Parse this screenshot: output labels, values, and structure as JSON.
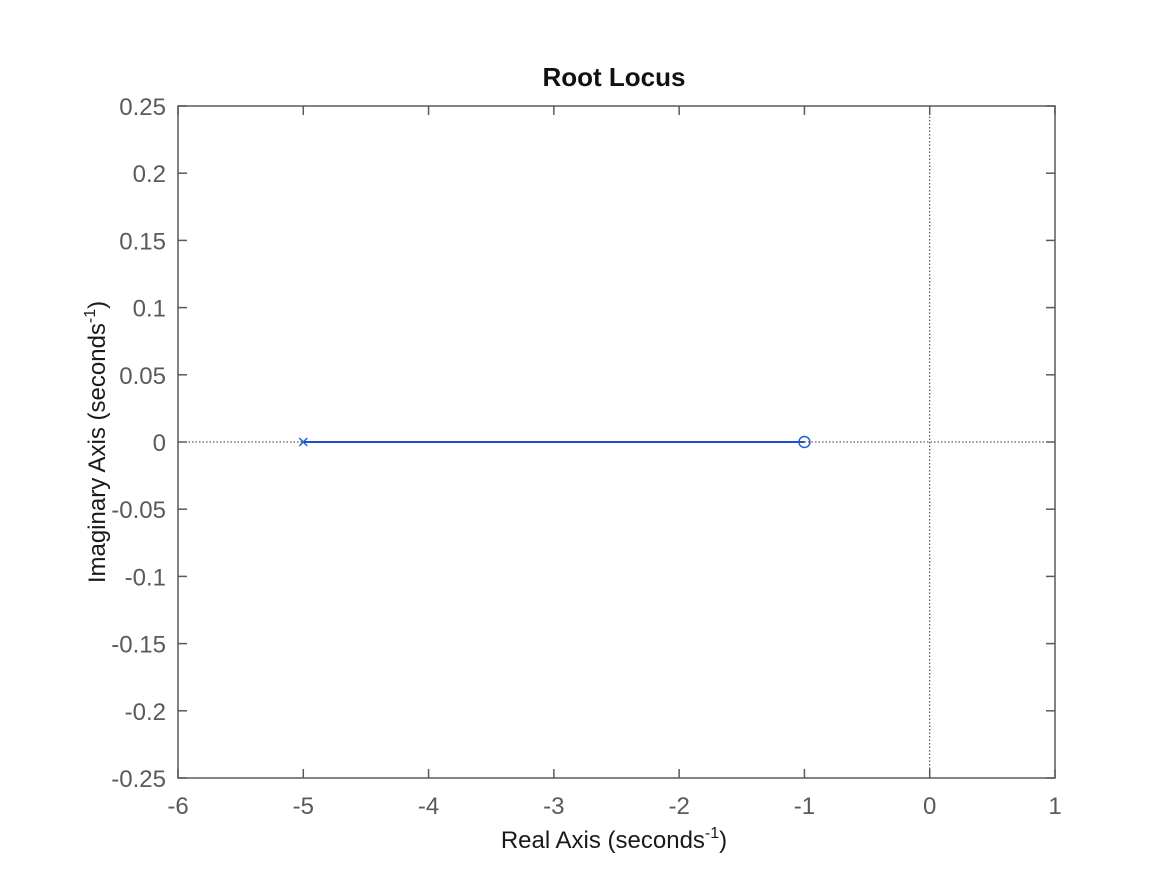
{
  "chart_data": {
    "type": "line",
    "title": "Root Locus",
    "xlabel": {
      "prefix": "Real Axis (seconds",
      "sup": "-1",
      "suffix": ")"
    },
    "ylabel": {
      "prefix": "Imaginary Axis (seconds",
      "sup": "-1",
      "suffix": ")"
    },
    "xlim": [
      -6,
      1
    ],
    "ylim": [
      -0.25,
      0.25
    ],
    "xticks": [
      -6,
      -5,
      -4,
      -3,
      -2,
      -1,
      0,
      1
    ],
    "xtick_labels": [
      "-6",
      "-5",
      "-4",
      "-3",
      "-2",
      "-1",
      "0",
      "1"
    ],
    "yticks": [
      0.25,
      0.2,
      0.15,
      0.1,
      0.05,
      0,
      -0.05,
      -0.1,
      -0.15,
      -0.2,
      -0.25
    ],
    "ytick_labels": [
      "0.25",
      "0.2",
      "0.15",
      "0.1",
      "0.05",
      "0",
      "-0.05",
      "-0.1",
      "-0.15",
      "-0.2",
      "-0.25"
    ],
    "grid": false,
    "reference_lines": {
      "x": 0,
      "y": 0,
      "style": "dotted"
    },
    "series": [
      {
        "name": "locus-branch",
        "x": [
          -5,
          -1
        ],
        "y": [
          0,
          0
        ],
        "color": "#0033cc"
      }
    ],
    "poles": [
      {
        "x": -5,
        "y": 0
      }
    ],
    "zeros": [
      {
        "x": -1,
        "y": 0
      }
    ],
    "marker_color": "#1f5fd0",
    "axes_color": "#5a5a5a"
  }
}
